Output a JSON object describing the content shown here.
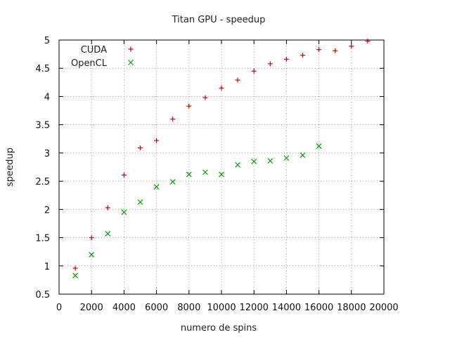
{
  "chart_data": {
    "type": "scatter",
    "title": "Titan GPU - speedup",
    "xlabel": "numero de spins",
    "ylabel": "speedup",
    "xlim": [
      0,
      20000
    ],
    "ylim": [
      0.5,
      5
    ],
    "x_ticks": [
      0,
      2000,
      4000,
      6000,
      8000,
      10000,
      12000,
      14000,
      16000,
      18000,
      20000
    ],
    "y_ticks": [
      0.5,
      1,
      1.5,
      2,
      2.5,
      3,
      3.5,
      4,
      4.5,
      5
    ],
    "grid": true,
    "legend_position": "top-left",
    "series": [
      {
        "name": "CUDA",
        "marker": "plus",
        "color": "#cc0000",
        "x": [
          1000,
          2000,
          3000,
          4000,
          5000,
          6000,
          7000,
          8000,
          9000,
          10000,
          11000,
          12000,
          13000,
          14000,
          15000,
          16000,
          17000,
          18000,
          19000
        ],
        "y": [
          0.96,
          1.5,
          2.03,
          2.61,
          3.09,
          3.22,
          3.6,
          3.83,
          3.98,
          4.15,
          4.29,
          4.45,
          4.58,
          4.66,
          4.73,
          4.83,
          4.81,
          4.89,
          4.98
        ]
      },
      {
        "name": "OpenCL",
        "marker": "cross",
        "color": "#00a000",
        "x": [
          1000,
          2000,
          3000,
          4000,
          5000,
          6000,
          7000,
          8000,
          9000,
          10000,
          11000,
          12000,
          13000,
          14000,
          15000,
          16000
        ],
        "y": [
          0.83,
          1.2,
          1.57,
          1.95,
          2.13,
          2.4,
          2.49,
          2.62,
          2.66,
          2.62,
          2.79,
          2.85,
          2.86,
          2.91,
          2.96,
          3.12
        ]
      }
    ]
  }
}
